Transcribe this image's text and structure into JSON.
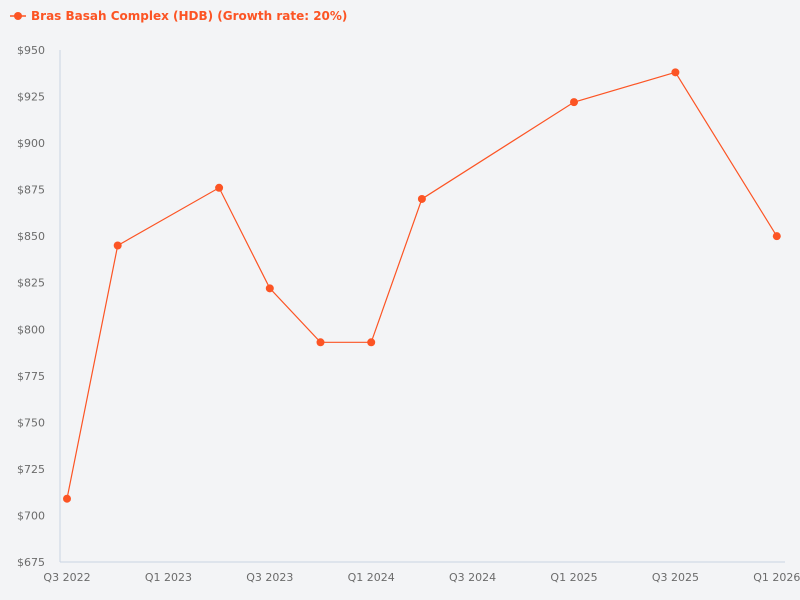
{
  "legend": {
    "label": "Bras Basah Complex (HDB) (Growth rate: 20%)",
    "color": "#fc5424"
  },
  "chart_data": {
    "type": "line",
    "title": "",
    "xlabel": "",
    "ylabel": "",
    "legend_position": "top-left",
    "grid": false,
    "x_tick_labels": [
      "Q3 2022",
      "Q1 2023",
      "Q3 2023",
      "Q1 2024",
      "Q3 2024",
      "Q1 2025",
      "Q3 2025",
      "Q1 2026"
    ],
    "y_tick_labels": [
      "$675",
      "$700",
      "$725",
      "$750",
      "$775",
      "$800",
      "$825",
      "$850",
      "$875",
      "$900",
      "$925",
      "$950"
    ],
    "ylim": [
      675,
      950
    ],
    "x_range_quarters": [
      "Q3 2022",
      "Q1 2026"
    ],
    "series": [
      {
        "name": "Bras Basah Complex (HDB) (Growth rate: 20%)",
        "color": "#fc5424",
        "x": [
          "Q3 2022",
          "Q4 2022",
          "Q2 2023",
          "Q3 2023",
          "Q4 2023",
          "Q1 2024",
          "Q2 2024",
          "Q1 2025",
          "Q3 2025",
          "Q1 2026"
        ],
        "x_index": [
          0,
          1,
          3,
          4,
          5,
          6,
          7,
          10,
          12,
          14
        ],
        "values": [
          709,
          845,
          876,
          822,
          793,
          793,
          870,
          922,
          938,
          850
        ]
      }
    ]
  }
}
